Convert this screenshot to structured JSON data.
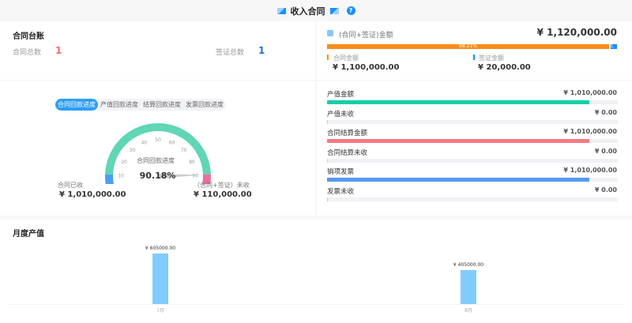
{
  "header": {
    "title": "收入合同"
  },
  "ledger": {
    "title": "合同台账",
    "contract_count_label": "合同总数",
    "contract_count": "1",
    "visa_count_label": "签证总数",
    "visa_count": "1"
  },
  "total": {
    "label": "(合同+签证)金额",
    "value": "¥ 1,120,000.00",
    "percent_label": "98.21%",
    "percent": 98.21,
    "overflow_label": "1.",
    "contract_label": "合同金额",
    "contract_value": "¥ 1,100,000.00",
    "visa_label": "签证金额",
    "visa_value": "¥ 20,000.00",
    "colors": {
      "contract": "#fa8c16",
      "visa": "#1890ff"
    }
  },
  "gauge": {
    "tabs": [
      "合同回款进度",
      "产值回款进度",
      "结算回款进度",
      "发票回款进度"
    ],
    "active_tab": 0,
    "ticks": [
      "0",
      "10",
      "20",
      "30",
      "40",
      "50",
      "60",
      "70",
      "80",
      "90",
      "100"
    ],
    "name": "合同回款进度",
    "value_label": "90.18%",
    "value": 90.18,
    "received_label": "合同已收",
    "received_value": "¥ 1,010,000.00",
    "unreceived_label": "（合同+签证）未收",
    "unreceived_value": "¥ 110,000.00",
    "colors": {
      "low": "#4a9ff5",
      "mid": "#5fd6b5",
      "high": "#ee6e9f"
    }
  },
  "progress_rows": [
    {
      "label": "产值金额",
      "value": "¥ 1,010,000.00",
      "percent": 90.2,
      "color": "#12cfa9"
    },
    {
      "label": "产值未收",
      "value": "¥ 0.00",
      "percent": 0,
      "color": "#12cfa9"
    },
    {
      "label": "合同结算金额",
      "value": "¥ 1,010,000.00",
      "percent": 90.2,
      "color": "#f87a80"
    },
    {
      "label": "合同结算未收",
      "value": "¥ 0.00",
      "percent": 0,
      "color": "#f87a80"
    },
    {
      "label": "销项发票",
      "value": "¥ 1,010,000.00",
      "percent": 90.2,
      "color": "#5599f0"
    },
    {
      "label": "发票未收",
      "value": "¥ 0.00",
      "percent": 0,
      "color": "#5599f0"
    }
  ],
  "chart_data": {
    "type": "bar",
    "title": "月度产值",
    "categories": [
      "7月",
      "8月"
    ],
    "values": [
      605000,
      405000
    ],
    "data_labels": [
      "¥ 605000.00",
      "¥ 405000.00"
    ],
    "ylim": [
      0,
      605000
    ],
    "grid": false,
    "color": "#80ccff"
  }
}
